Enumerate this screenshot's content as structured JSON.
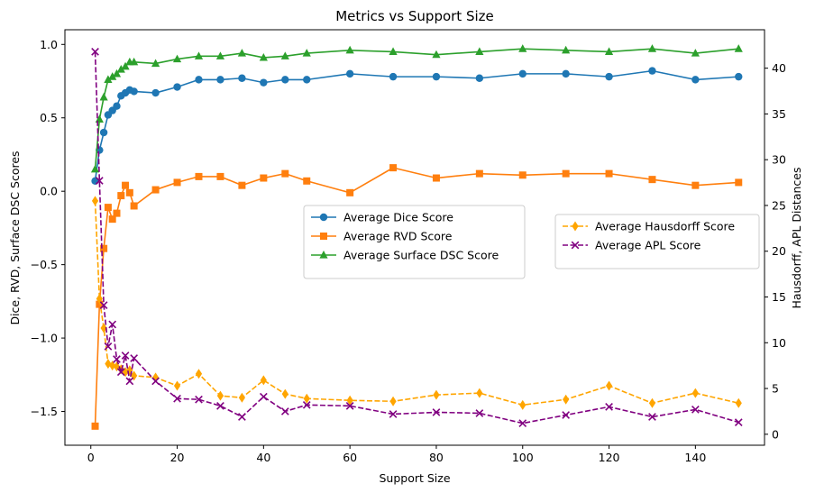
{
  "chart_data": {
    "type": "line",
    "title": "Metrics vs Support Size",
    "xlabel": "Support Size",
    "ylabel_left": "Dice, RVD, Surface DSC Scores",
    "ylabel_right": "Hausdorff, APL Distances",
    "xlim": [
      -6,
      156
    ],
    "ylim_left": [
      -1.73,
      1.1
    ],
    "ylim_right": [
      -1.2,
      44.2
    ],
    "x_ticks": [
      0,
      20,
      40,
      60,
      80,
      100,
      120,
      140
    ],
    "y_left_ticks": [
      -1.5,
      -1.0,
      -0.5,
      0.0,
      0.5,
      1.0
    ],
    "y_right_ticks": [
      0,
      5,
      10,
      15,
      20,
      25,
      30,
      35,
      40
    ],
    "x": [
      1,
      2,
      3,
      4,
      5,
      6,
      7,
      8,
      9,
      10,
      15,
      20,
      25,
      30,
      35,
      40,
      45,
      50,
      60,
      70,
      80,
      90,
      100,
      110,
      120,
      130,
      140,
      150
    ],
    "legend_left": "center",
    "legend_right": "center-right",
    "grid": false,
    "series": [
      {
        "name": "Average Dice Score",
        "axis": "left",
        "color": "#1f77b4",
        "marker": "circle",
        "dashed": false,
        "values": [
          0.07,
          0.28,
          0.4,
          0.52,
          0.55,
          0.58,
          0.65,
          0.67,
          0.69,
          0.68,
          0.67,
          0.71,
          0.76,
          0.76,
          0.77,
          0.74,
          0.76,
          0.76,
          0.8,
          0.78,
          0.78,
          0.77,
          0.8,
          0.8,
          0.78,
          0.82,
          0.76,
          0.78
        ]
      },
      {
        "name": "Average RVD Score",
        "axis": "left",
        "color": "#ff7f0e",
        "marker": "square",
        "dashed": false,
        "values": [
          -1.6,
          -0.77,
          -0.39,
          -0.11,
          -0.19,
          -0.15,
          -0.03,
          0.04,
          -0.01,
          -0.1,
          0.01,
          0.06,
          0.1,
          0.1,
          0.04,
          0.09,
          0.12,
          0.07,
          -0.01,
          0.16,
          0.09,
          0.12,
          0.11,
          0.12,
          0.12,
          0.08,
          0.04,
          0.06
        ]
      },
      {
        "name": "Average Surface DSC Score",
        "axis": "left",
        "color": "#2ca02c",
        "marker": "triangle",
        "dashed": false,
        "values": [
          0.15,
          0.49,
          0.64,
          0.76,
          0.78,
          0.8,
          0.83,
          0.85,
          0.88,
          0.88,
          0.87,
          0.9,
          0.92,
          0.92,
          0.94,
          0.91,
          0.92,
          0.94,
          0.96,
          0.95,
          0.93,
          0.95,
          0.97,
          0.96,
          0.95,
          0.97,
          0.94,
          0.97
        ]
      },
      {
        "name": "Average Hausdorff Score",
        "axis": "right",
        "color": "#ffa500",
        "marker": "diamond",
        "dashed": true,
        "values": [
          25.5,
          14.8,
          11.6,
          7.7,
          7.5,
          7.4,
          7.1,
          6.8,
          7.0,
          6.4,
          6.2,
          5.3,
          6.6,
          4.2,
          4.0,
          5.9,
          4.4,
          3.9,
          3.7,
          3.6,
          4.3,
          4.5,
          3.2,
          3.8,
          5.3,
          3.4,
          4.5,
          3.4
        ]
      },
      {
        "name": "Average APL Score",
        "axis": "right",
        "color": "#800080",
        "marker": "x",
        "dashed": true,
        "values": [
          41.8,
          27.7,
          14.1,
          9.6,
          12.0,
          8.2,
          6.8,
          8.6,
          5.8,
          8.3,
          5.8,
          3.9,
          3.8,
          3.1,
          1.9,
          4.1,
          2.5,
          3.2,
          3.1,
          2.2,
          2.4,
          2.3,
          1.2,
          2.1,
          3.0,
          1.9,
          2.7,
          1.3
        ]
      }
    ]
  }
}
